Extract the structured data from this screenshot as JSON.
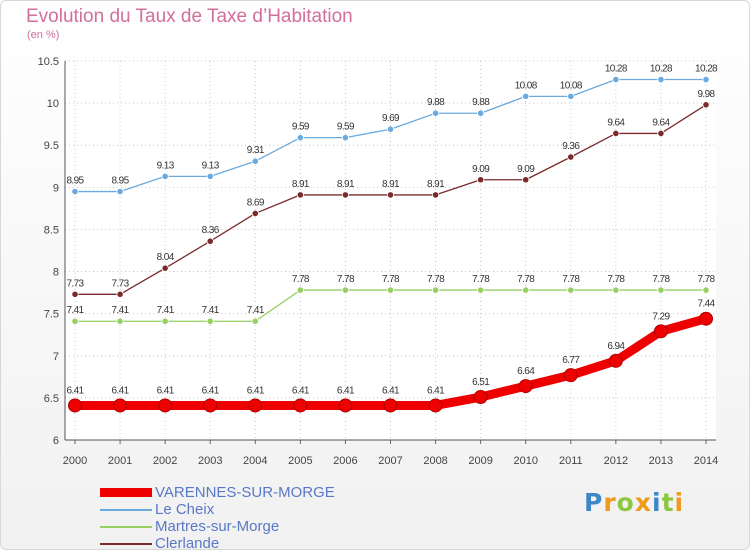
{
  "header": {
    "title": "Evolution du Taux de Taxe d’Habitation",
    "unit": "(en %)"
  },
  "brand": {
    "logo_text": "Proxiti",
    "logo_colors": [
      "#3d87c9",
      "#f09a1a",
      "#8dc63f",
      "#f09a1a",
      "#3d87c9",
      "#8dc63f",
      "#f09a1a"
    ]
  },
  "chart_data": {
    "type": "line",
    "x": [
      "2000",
      "2001",
      "2002",
      "2003",
      "2004",
      "2005",
      "2006",
      "2007",
      "2008",
      "2009",
      "2010",
      "2011",
      "2012",
      "2013",
      "2014"
    ],
    "ylim": [
      6,
      10.5
    ],
    "yticks": [
      "6",
      "6.5",
      "7",
      "7.5",
      "8",
      "8.5",
      "9",
      "9.5",
      "10",
      "10.5"
    ],
    "grid": true,
    "legend_position": "bottom-left",
    "series": [
      {
        "name": "VARENNES-SUR-MORGE",
        "color": "#ee0000",
        "values": [
          6.41,
          6.41,
          6.41,
          6.41,
          6.41,
          6.41,
          6.41,
          6.41,
          6.41,
          6.51,
          6.64,
          6.77,
          6.94,
          7.29,
          7.44
        ],
        "labels": [
          "6.41",
          "6.41",
          "6.41",
          "6.41",
          "6.41",
          "6.41",
          "6.41",
          "6.41",
          "6.41",
          "6.51",
          "6.64",
          "6.77",
          "6.94",
          "7.29",
          "7.44"
        ]
      },
      {
        "name": "Le Cheix",
        "color": "#6aaade",
        "values": [
          8.95,
          8.95,
          9.13,
          9.13,
          9.31,
          9.59,
          9.59,
          9.69,
          9.88,
          9.88,
          10.08,
          10.08,
          10.28,
          10.28,
          10.28
        ],
        "labels": [
          "8.95",
          "8.95",
          "9.13",
          "9.13",
          "9.31",
          "9.59",
          "9.59",
          "9.69",
          "9.88",
          "9.88",
          "10.08",
          "10.08",
          "10.28",
          "10.28",
          "10.28"
        ]
      },
      {
        "name": "Martres-sur-Morge",
        "color": "#96cf62",
        "values": [
          7.41,
          7.41,
          7.41,
          7.41,
          7.41,
          7.78,
          7.78,
          7.78,
          7.78,
          7.78,
          7.78,
          7.78,
          7.78,
          7.78,
          7.78
        ],
        "labels": [
          "7.41",
          "7.41",
          "7.41",
          "7.41",
          "7.41",
          "7.78",
          "7.78",
          "7.78",
          "7.78",
          "7.78",
          "7.78",
          "7.78",
          "7.78",
          "7.78",
          "7.78"
        ]
      },
      {
        "name": "Clerlande",
        "color": "#7a2a2a",
        "values": [
          7.73,
          7.73,
          8.04,
          8.36,
          8.69,
          8.91,
          8.91,
          8.91,
          8.91,
          9.09,
          9.09,
          9.36,
          9.64,
          9.64,
          9.98
        ],
        "labels": [
          "7.73",
          "7.73",
          "8.04",
          "8.36",
          "8.69",
          "8.91",
          "8.91",
          "8.91",
          "8.91",
          "9.09",
          "9.09",
          "9.36",
          "9.64",
          "9.64",
          "9.98"
        ]
      }
    ]
  }
}
